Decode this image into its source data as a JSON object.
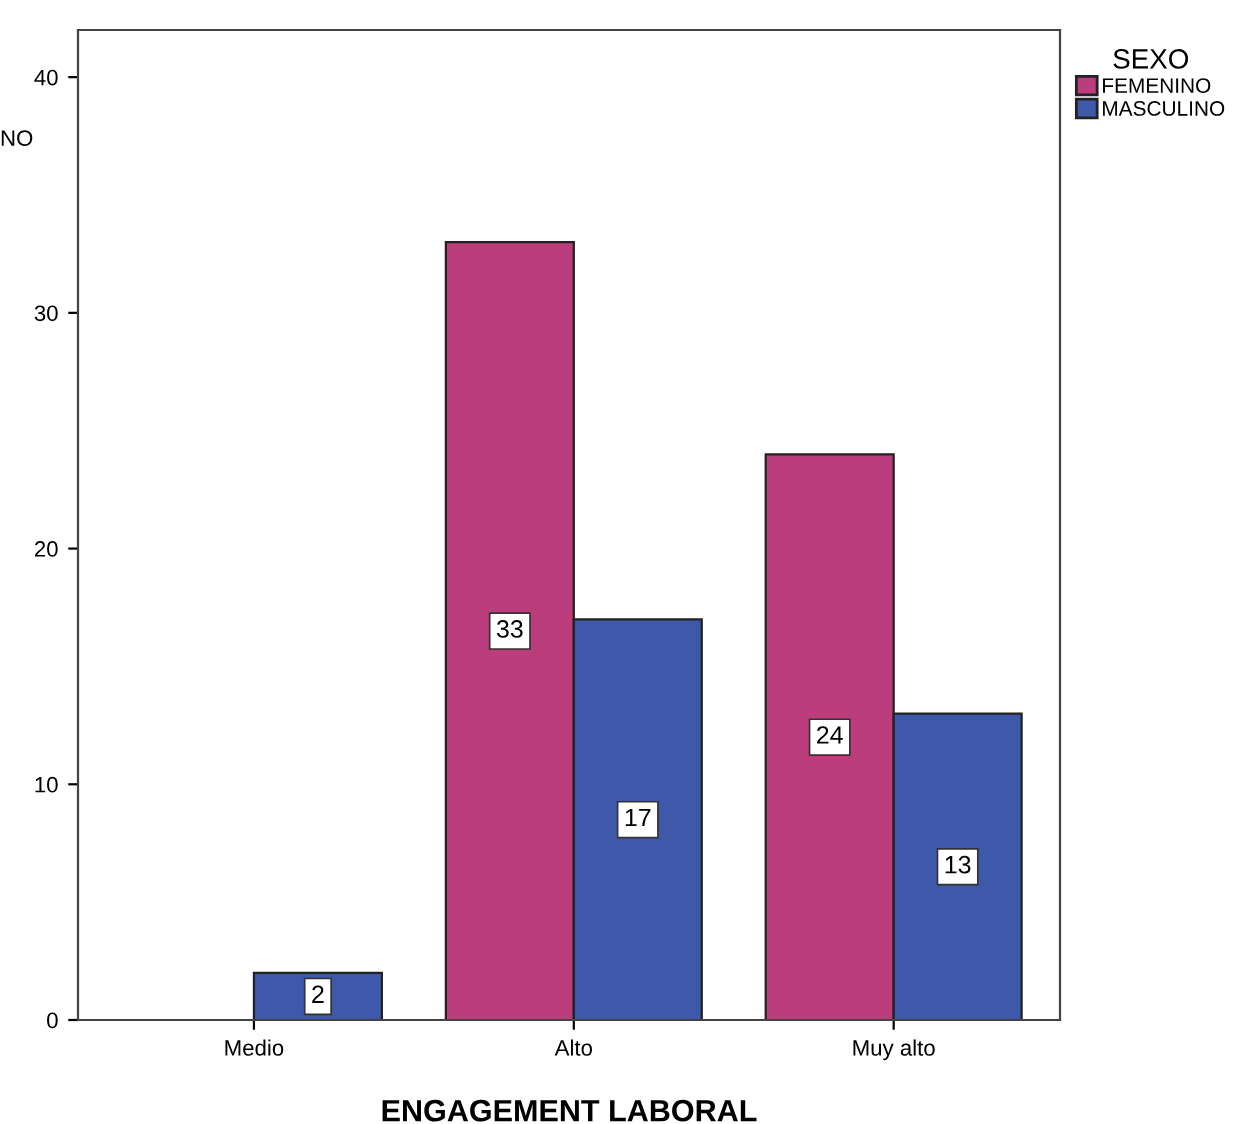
{
  "chart_data": {
    "type": "bar",
    "categories": [
      "Medio",
      "Alto",
      "Muy alto"
    ],
    "series": [
      {
        "name": "FEMENINO",
        "color": "#bb3d7b",
        "values": [
          null,
          33,
          24
        ]
      },
      {
        "name": "MASCULINO",
        "color": "#3e59a9",
        "values": [
          2,
          17,
          13
        ]
      }
    ],
    "xlabel": "ENGAGEMENT LABORAL",
    "ylabel": "NO",
    "legend_title": "SEXO",
    "legend": "right",
    "ylim": [
      0,
      42
    ],
    "yticks": [
      0,
      10,
      20,
      30,
      40
    ],
    "data_labels": true,
    "grid": false
  }
}
